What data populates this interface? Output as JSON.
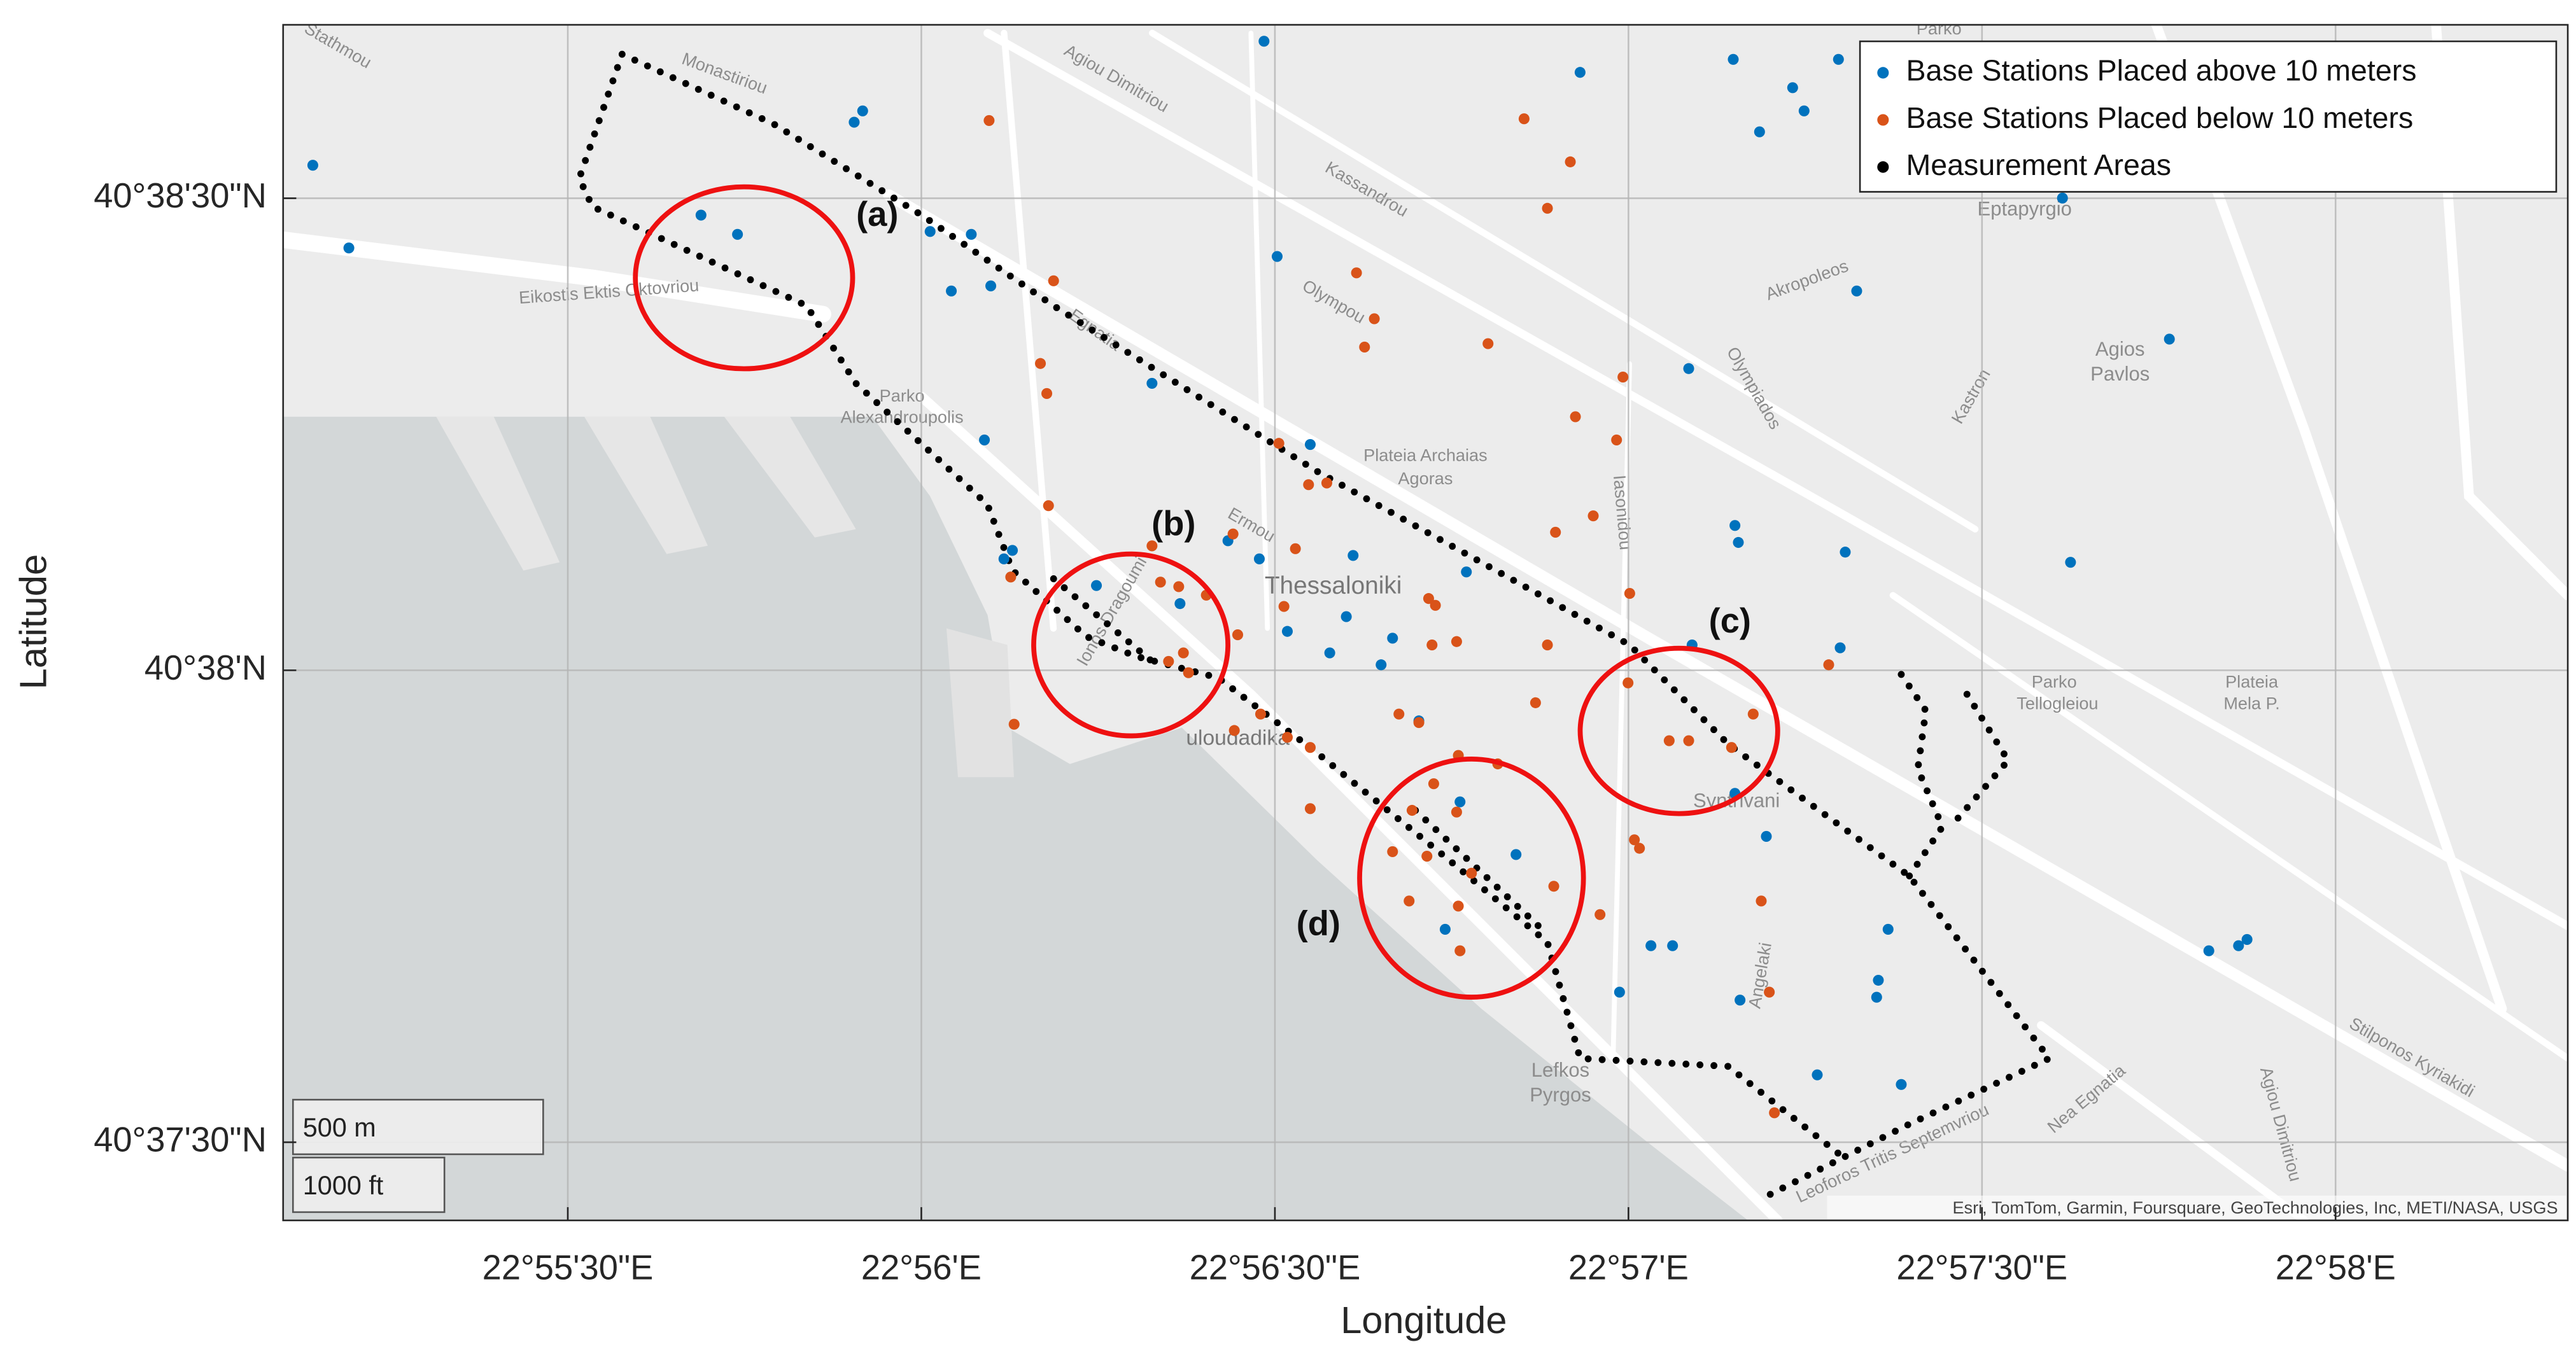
{
  "chart_data": {
    "type": "scatter",
    "xlabel": "Longitude",
    "ylabel": "Latitude",
    "xlim": [
      22.91829,
      22.97214
    ],
    "ylim": [
      40.62362,
      40.64473
    ],
    "xticks": [
      {
        "value": 22.925,
        "label": "22°55'30\"E"
      },
      {
        "value": 22.933333,
        "label": "22°56'E"
      },
      {
        "value": 22.941667,
        "label": "22°56'30\"E"
      },
      {
        "value": 22.95,
        "label": "22°57'E"
      },
      {
        "value": 22.958333,
        "label": "22°57'30\"E"
      },
      {
        "value": 22.966667,
        "label": "22°58'E"
      }
    ],
    "yticks": [
      {
        "value": 40.625,
        "label": "40°37'30\"N"
      },
      {
        "value": 40.633333,
        "label": "40°38'N"
      },
      {
        "value": 40.641667,
        "label": "40°38'30\"N"
      }
    ],
    "grid": true,
    "legend": "upper right",
    "series": [
      {
        "name": "Base Stations Placed above 10 meters",
        "color": "#0072bd",
        "style": "dots",
        "x": [
          22.91899,
          22.91984,
          22.92814,
          22.929,
          22.93175,
          22.93195,
          22.93354,
          22.93451,
          22.93404,
          22.93497,
          22.94141,
          22.94172,
          22.94886,
          22.95247,
          22.95387,
          22.95309,
          22.95414,
          22.95495,
          22.96023,
          22.95538,
          22.96275,
          22.95142,
          22.93877,
          22.93482,
          22.9425,
          22.94056,
          22.9413,
          22.94351,
          22.93528,
          22.93548,
          22.93746,
          22.93943,
          22.94618,
          22.94335,
          22.94196,
          22.94296,
          22.94444,
          22.94417,
          22.94506,
          22.94603,
          22.94735,
          22.94568,
          22.9515,
          22.95251,
          22.95259,
          22.95511,
          22.95499,
          22.96042,
          22.95325,
          22.95251,
          22.95053,
          22.95104,
          22.94979,
          22.95263,
          22.95612,
          22.95585,
          22.95589,
          22.95445,
          22.95643,
          22.96368,
          22.96438,
          22.96458
        ],
        "y": [
          40.64225,
          40.64079,
          40.64137,
          40.64103,
          40.64301,
          40.64321,
          40.64108,
          40.64103,
          40.64003,
          40.64012,
          40.64444,
          40.64064,
          40.64389,
          40.64412,
          40.64362,
          40.64284,
          40.64321,
          40.64412,
          40.64167,
          40.64003,
          40.63918,
          40.63866,
          40.6384,
          40.6374,
          40.63732,
          40.63562,
          40.6353,
          40.63536,
          40.6353,
          40.63545,
          40.63483,
          40.63451,
          40.63507,
          40.63428,
          40.63402,
          40.63364,
          40.6339,
          40.63343,
          40.63244,
          40.63101,
          40.63008,
          40.62876,
          40.63378,
          40.63589,
          40.63559,
          40.63542,
          40.63373,
          40.63524,
          40.6304,
          40.63116,
          40.62847,
          40.62847,
          40.62765,
          40.62751,
          40.62876,
          40.62756,
          40.62786,
          40.62619,
          40.62602,
          40.62838,
          40.62847,
          40.62858
        ]
      },
      {
        "name": "Base Stations Placed below 10 meters",
        "color": "#d95319",
        "style": "dots",
        "x": [
          22.93493,
          22.94754,
          22.94863,
          22.94809,
          22.94359,
          22.94401,
          22.94669,
          22.94378,
          22.93645,
          22.93614,
          22.93629,
          22.94987,
          22.94875,
          22.94972,
          22.94176,
          22.94289,
          22.94246,
          22.93633,
          22.93877,
          22.94068,
          22.94215,
          22.94828,
          22.94917,
          22.93544,
          22.93897,
          22.9394,
          22.94005,
          22.94188,
          22.94529,
          22.94545,
          22.94537,
          22.94079,
          22.94809,
          22.94595,
          22.95003,
          22.93916,
          22.93951,
          22.93963,
          22.94781,
          22.94999,
          22.94133,
          22.94071,
          22.94196,
          22.9425,
          22.94459,
          22.94506,
          22.94599,
          22.94692,
          22.94541,
          22.9449,
          22.94595,
          22.9425,
          22.94444,
          22.9463,
          22.94525,
          22.94599,
          22.94483,
          22.94603,
          22.94824,
          22.94933,
          22.95014,
          22.95026,
          22.95096,
          22.95142,
          22.95243,
          22.95294,
          22.95313,
          22.95332,
          22.95472,
          22.95344,
          22.93552
        ],
        "y": [
          40.64304,
          40.64307,
          40.64231,
          40.64149,
          40.64035,
          40.63954,
          40.6391,
          40.63904,
          40.64021,
          40.63875,
          40.63822,
          40.63851,
          40.63781,
          40.6374,
          40.63734,
          40.63664,
          40.63661,
          40.63624,
          40.63553,
          40.63574,
          40.63548,
          40.63577,
          40.63606,
          40.63498,
          40.63489,
          40.63481,
          40.63466,
          40.63446,
          40.6346,
          40.63448,
          40.63378,
          40.63396,
          40.63378,
          40.63384,
          40.63469,
          40.63349,
          40.63364,
          40.63329,
          40.63276,
          40.63311,
          40.63256,
          40.63227,
          40.63215,
          40.63197,
          40.63256,
          40.63241,
          40.63183,
          40.63168,
          40.63133,
          40.63086,
          40.63083,
          40.63089,
          40.63013,
          40.62975,
          40.63005,
          40.62917,
          40.62926,
          40.62838,
          40.62952,
          40.62902,
          40.63034,
          40.63019,
          40.63209,
          40.63209,
          40.63197,
          40.63256,
          40.62926,
          40.62765,
          40.63343,
          40.62552,
          40.63238
        ]
      },
      {
        "name": "Measurement Areas",
        "color": "#000000",
        "style": "dotted-line",
        "x": [
          22.92628,
          22.92985,
          22.93334,
          22.93645,
          22.94265,
          22.94653,
          22.95003,
          22.95235,
          22.95662,
          22.95992,
          22.95662,
          22.95313,
          null,
          22.92628,
          22.92527,
          22.92558,
          22.93063,
          22.93179,
          22.93489,
          22.93548,
          22.93722,
          22.93839,
          22.94033,
          22.94265,
          22.94576,
          22.94809,
          22.94886,
          22.95235,
          22.95507,
          null,
          22.95643,
          22.95701,
          22.95682,
          22.9574,
          22.95662,
          null,
          22.95798,
          22.95895,
          22.95759,
          null,
          22.94498,
          22.94809,
          null,
          22.93645,
          22.93877
        ],
        "y": [
          40.64421,
          40.64298,
          40.64137,
          40.63977,
          40.63685,
          40.63524,
          40.63378,
          40.63203,
          40.6297,
          40.62648,
          40.62532,
          40.624,
          null,
          40.64421,
          40.64202,
          40.64152,
          40.63977,
          40.6384,
          40.63626,
          40.6351,
          40.63393,
          40.63358,
          40.6332,
          40.63188,
          40.62999,
          40.62853,
          40.62648,
          40.62634,
          40.62473,
          null,
          40.63326,
          40.63262,
          40.63159,
          40.63057,
          40.6297,
          null,
          40.63291,
          40.63174,
          40.63057,
          null,
          40.63086,
          40.62867,
          null,
          40.63495,
          40.63349
        ]
      }
    ],
    "annotations": [
      "(a)",
      "(b)",
      "(c)",
      "(d)"
    ],
    "map_labels": [
      "Thessaloniki",
      "Eikostis Ektis Oktovriou",
      "Egnatia",
      "Kassandrou",
      "Olympou",
      "Agiou Dimitriou",
      "Akropoleos",
      "Eptapyrgio",
      "Agios",
      "Pavlos",
      "Plateia Archaias",
      "Agoras",
      "Parko",
      "Alexandroupolis",
      "Lefkos",
      "Pyrgos",
      "Syntrivani",
      "Parko",
      "Tellogleiou",
      "Plateia",
      "Mela P.",
      "Olympiados",
      "Kastron",
      "Iasonidou",
      "Ermou",
      "Agiou Dimitriou",
      "Stilponos Kyriakidi",
      "Nea Egnatia",
      "Leoforos Tritis Septemvriou",
      "Monastiriou",
      "Angelaki",
      "uloudadika",
      "Ionos Dragoumi",
      "Parko",
      "Stathmou"
    ],
    "scale_bar": [
      "500 m",
      "1000 ft"
    ],
    "attribution": "Esri, TomTom, Garmin, Foursquare, GeoTechnologies, Inc, METI/NASA, USGS"
  }
}
